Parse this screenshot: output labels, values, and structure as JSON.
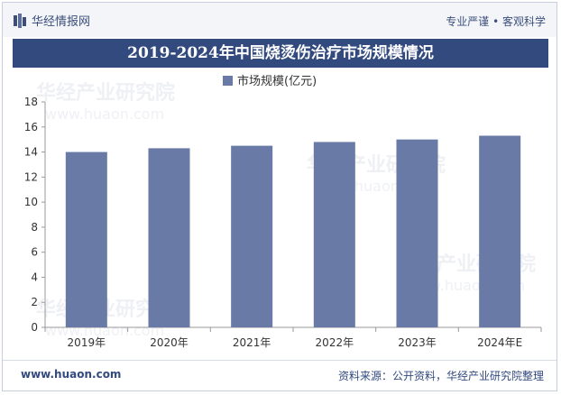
{
  "header": {
    "brand": "华经情报网",
    "tagline": "专业严谨 • 客观科学"
  },
  "footer": {
    "website": "www.huaon.com",
    "source": "资料来源：公开资料，华经产业研究院整理"
  },
  "watermark": {
    "text_cn": "华经产业研究院",
    "text_en": "www.huaon.com"
  },
  "colors": {
    "bar": "#6a7aa6",
    "title_bg": "#324a7e"
  },
  "chart_data": {
    "type": "bar",
    "title": "2019-2024年中国烧烫伤治疗市场规模情况",
    "legend": "市场规模(亿元)",
    "legend_position": "top-center",
    "categories": [
      "2019年",
      "2020年",
      "2021年",
      "2022年",
      "2023年",
      "2024年E"
    ],
    "values": [
      14.0,
      14.3,
      14.5,
      14.8,
      15.0,
      15.3
    ],
    "ylim": [
      0,
      18
    ],
    "yticks": [
      0,
      2,
      4,
      6,
      8,
      10,
      12,
      14,
      16,
      18
    ],
    "xlabel": "",
    "ylabel": "",
    "grid": false
  }
}
